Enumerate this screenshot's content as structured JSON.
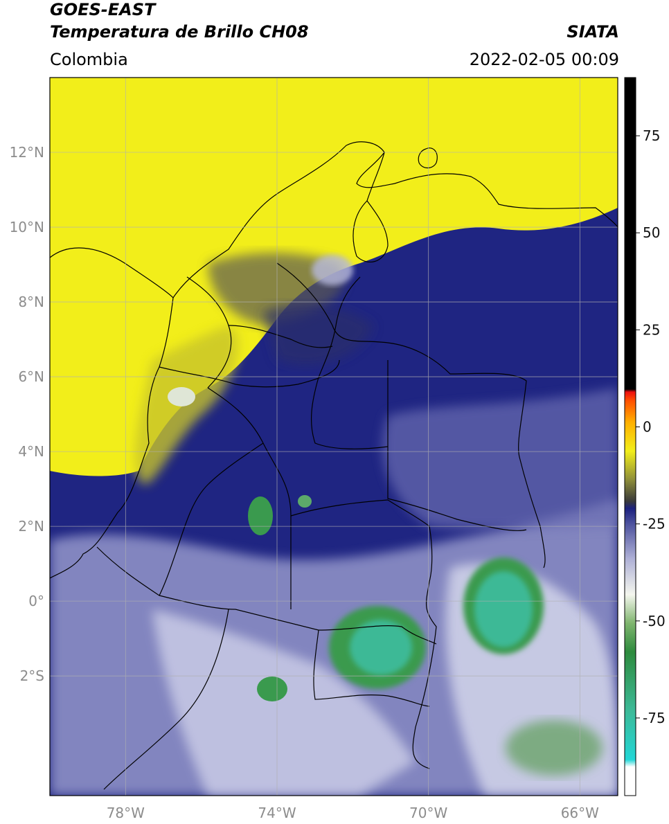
{
  "header": {
    "satellite": "GOES-EAST",
    "product": "Temperatura de Brillo CH08",
    "organization": "SIATA",
    "region": "Colombia",
    "timestamp": "2022-02-05 00:09"
  },
  "map": {
    "lon_range": [
      -80,
      -65
    ],
    "lat_range": [
      -5.2,
      14
    ],
    "lat_ticks": [
      {
        "value": 12,
        "label": "12°N"
      },
      {
        "value": 10,
        "label": "10°N"
      },
      {
        "value": 8,
        "label": "8°N"
      },
      {
        "value": 6,
        "label": "6°N"
      },
      {
        "value": 4,
        "label": "4°N"
      },
      {
        "value": 2,
        "label": "2°N"
      },
      {
        "value": 0,
        "label": "0°"
      },
      {
        "value": -2,
        "label": "2°S"
      }
    ],
    "lon_ticks": [
      {
        "value": -78,
        "label": "78°W"
      },
      {
        "value": -74,
        "label": "74°W"
      },
      {
        "value": -70,
        "label": "70°W"
      },
      {
        "value": -66,
        "label": "66°W"
      }
    ],
    "colors": {
      "warm": "#f2ee1a",
      "mid": "#1c217e",
      "cold": "#9da0cc",
      "coldest": "#3a9a4e",
      "core": "#3cb996"
    }
  },
  "colorbar": {
    "range": [
      -95,
      90
    ],
    "ticks": [
      {
        "value": 75,
        "label": "75"
      },
      {
        "value": 50,
        "label": "50"
      },
      {
        "value": 25,
        "label": "25"
      },
      {
        "value": 0,
        "label": "0"
      },
      {
        "value": -25,
        "label": "-25"
      },
      {
        "value": -50,
        "label": "-50"
      },
      {
        "value": -75,
        "label": "-75"
      }
    ]
  }
}
